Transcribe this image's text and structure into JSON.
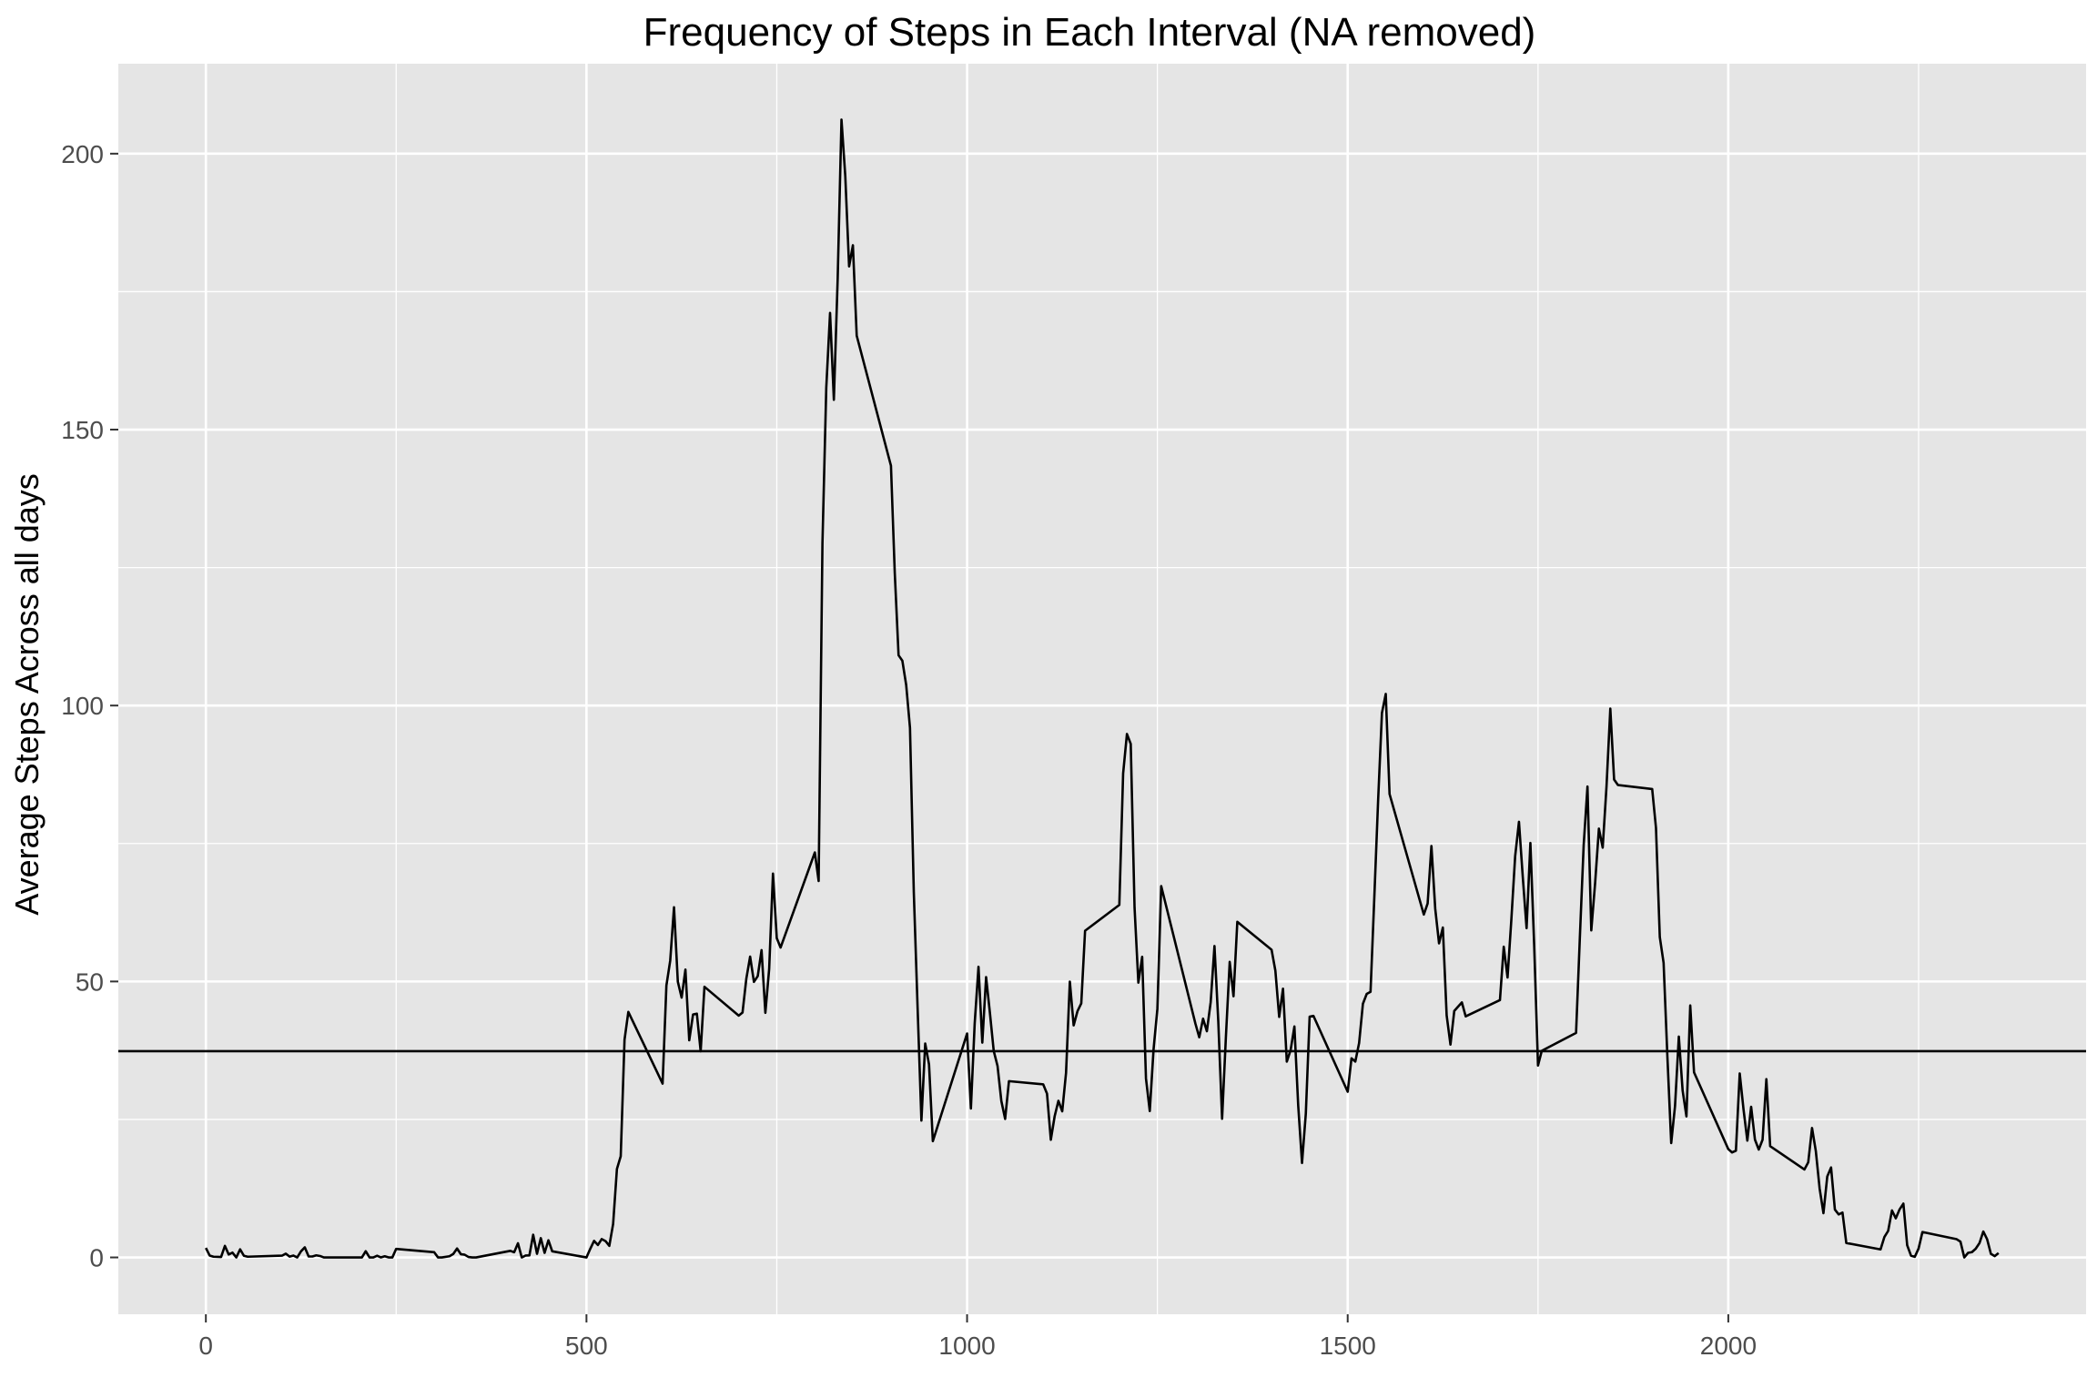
{
  "chart_data": {
    "type": "line",
    "title": "Frequency of Steps in Each Interval (NA removed)",
    "xlabel": "",
    "ylabel": "Average Steps Across all days",
    "xlim": [
      -115,
      2470
    ],
    "ylim": [
      -10.3,
      216.3
    ],
    "x_ticks": [
      0,
      500,
      1000,
      1500,
      2000
    ],
    "y_ticks": [
      0,
      50,
      100,
      150,
      200
    ],
    "x_tick_labels": [
      "0",
      "500",
      "1000",
      "1500",
      "2000"
    ],
    "y_tick_labels": [
      "0",
      "50",
      "100",
      "150",
      "200"
    ],
    "grid": true,
    "panel_color": "#e5e5e5",
    "grid_color": "#ffffff",
    "line_color": "#000000",
    "mean_line": 37.38,
    "series": [
      {
        "x": [
          0,
          5,
          10,
          20,
          25,
          30,
          35,
          40,
          45,
          50,
          55,
          100,
          105,
          110,
          115,
          120,
          125,
          130,
          135,
          140,
          145,
          150,
          155,
          200,
          205,
          210,
          215,
          220,
          225,
          230,
          235,
          240,
          245,
          250,
          300,
          305,
          310,
          320,
          325,
          330,
          335,
          340,
          345,
          350,
          355,
          400,
          405,
          410,
          415,
          420,
          425,
          430,
          435,
          440,
          445,
          450,
          455,
          500,
          505,
          510,
          515,
          520,
          525,
          530,
          535,
          540,
          545,
          550,
          555,
          600,
          605,
          610,
          615,
          620,
          625,
          630,
          635,
          640,
          645,
          650,
          655,
          700,
          705,
          710,
          715,
          720,
          725,
          730,
          735,
          740,
          745,
          750,
          755,
          800,
          805,
          810,
          815,
          820,
          825,
          830,
          835,
          840,
          845,
          850,
          855,
          900,
          905,
          910,
          915,
          920,
          925,
          930,
          935,
          940,
          945,
          950,
          955,
          1000,
          1005,
          1010,
          1015,
          1020,
          1025,
          1030,
          1035,
          1040,
          1045,
          1050,
          1055,
          1100,
          1105,
          1110,
          1115,
          1120,
          1125,
          1130,
          1135,
          1140,
          1145,
          1150,
          1155,
          1200,
          1205,
          1210,
          1215,
          1220,
          1225,
          1230,
          1235,
          1240,
          1245,
          1250,
          1255,
          1300,
          1305,
          1310,
          1315,
          1320,
          1325,
          1330,
          1335,
          1340,
          1345,
          1350,
          1355,
          1400,
          1405,
          1410,
          1415,
          1420,
          1425,
          1430,
          1435,
          1440,
          1445,
          1450,
          1455,
          1500,
          1505,
          1510,
          1515,
          1520,
          1525,
          1530,
          1535,
          1540,
          1545,
          1550,
          1555,
          1600,
          1605,
          1610,
          1615,
          1620,
          1625,
          1630,
          1635,
          1640,
          1645,
          1650,
          1655,
          1700,
          1705,
          1710,
          1715,
          1720,
          1725,
          1730,
          1735,
          1740,
          1745,
          1750,
          1755,
          1800,
          1805,
          1810,
          1815,
          1820,
          1825,
          1830,
          1835,
          1840,
          1845,
          1850,
          1855,
          1900,
          1905,
          1910,
          1915,
          1920,
          1925,
          1930,
          1935,
          1940,
          1945,
          1950,
          1955,
          2000,
          2005,
          2010,
          2015,
          2020,
          2025,
          2030,
          2035,
          2040,
          2045,
          2050,
          2055,
          2100,
          2105,
          2110,
          2115,
          2120,
          2125,
          2130,
          2135,
          2140,
          2145,
          2150,
          2155,
          2200,
          2205,
          2210,
          2215,
          2220,
          2225,
          2230,
          2235,
          2240,
          2245,
          2250,
          2255,
          2300,
          2305,
          2310,
          2315,
          2320,
          2325,
          2330,
          2335,
          2340,
          2345,
          2350,
          2355
        ],
        "y": [
          1.72,
          0.34,
          0.13,
          0.08,
          2.09,
          0.53,
          0.87,
          0,
          1.47,
          0.3,
          0.13,
          0.32,
          0.68,
          0.15,
          0.34,
          0,
          1.11,
          1.83,
          0.17,
          0.17,
          0.38,
          0.26,
          0,
          0,
          0,
          1.13,
          0,
          0,
          0.3,
          0,
          0.21,
          0,
          0,
          1.55,
          0.94,
          0,
          0,
          0.21,
          0.62,
          1.62,
          0.58,
          0.49,
          0.08,
          0,
          0,
          1.19,
          0.94,
          2.57,
          0,
          0.34,
          0.36,
          4.11,
          0.66,
          3.49,
          0.83,
          3.11,
          1.11,
          0,
          1.57,
          3,
          2.25,
          3.32,
          2.96,
          2.09,
          6.06,
          16.02,
          18.34,
          39.45,
          44.49,
          31.49,
          49.26,
          53.77,
          63.45,
          49.96,
          47.08,
          52.15,
          39.34,
          44.02,
          44.17,
          37.36,
          49.04,
          43.81,
          44.38,
          50.51,
          54.51,
          49.92,
          50.98,
          55.68,
          44.32,
          52.26,
          69.55,
          57.85,
          56.15,
          73.38,
          68.21,
          129.43,
          157.53,
          171.15,
          155.4,
          177.3,
          206.17,
          195.92,
          179.57,
          183.4,
          167.02,
          143.45,
          124.04,
          109.11,
          108.11,
          103.72,
          95.96,
          66.21,
          45.23,
          24.8,
          38.75,
          34.98,
          21.06,
          40.57,
          26.98,
          42.42,
          52.66,
          38.92,
          50.79,
          44.28,
          37.42,
          34.7,
          28.34,
          25.09,
          31.94,
          31.36,
          29.68,
          21.32,
          25.55,
          28.38,
          26.47,
          33.44,
          49.98,
          42.04,
          44.6,
          46.04,
          59.19,
          63.87,
          87.7,
          94.85,
          93.04,
          63.38,
          49.79,
          54.47,
          32.42,
          26.53,
          37.74,
          45.06,
          67.28,
          42.34,
          39.89,
          43.26,
          40.98,
          46.25,
          56.43,
          42.75,
          25.13,
          39.96,
          53.55,
          47.32,
          60.81,
          55.75,
          51.96,
          43.58,
          48.7,
          35.47,
          37.55,
          41.85,
          27.51,
          17.11,
          26.08,
          43.62,
          43.77,
          30.02,
          36.08,
          35.49,
          38.85,
          45.96,
          47.75,
          48.13,
          65.32,
          82.91,
          98.66,
          102.11,
          83.96,
          62.13,
          64.13,
          74.55,
          63.17,
          56.91,
          59.77,
          43.87,
          38.57,
          44.66,
          45.45,
          46.21,
          43.68,
          46.62,
          56.3,
          50.72,
          61.23,
          72.72,
          78.94,
          68.94,
          59.66,
          75.09,
          56.51,
          34.77,
          37.45,
          40.68,
          58.02,
          74.7,
          85.32,
          59.26,
          67.77,
          77.7,
          74.25,
          85.34,
          99.45,
          86.58,
          85.6,
          84.87,
          77.83,
          58.04,
          53.36,
          36.32,
          20.72,
          27.4,
          40.02,
          30.21,
          25.55,
          45.66,
          33.53,
          19.62,
          19.02,
          19.34,
          33.34,
          26.81,
          21.17,
          27.3,
          21.34,
          19.55,
          21.32,
          32.3,
          20.15,
          15.94,
          17.23,
          23.45,
          19.25,
          12.45,
          8.02,
          14.66,
          16.3,
          8.68,
          7.79,
          8.13,
          2.62,
          1.45,
          3.68,
          4.81,
          8.51,
          7.08,
          8.7,
          9.75,
          2.2,
          0.32,
          0.11,
          1.62,
          4.6,
          3.3,
          2.85,
          0,
          0.83,
          0.96,
          1.58,
          2.6,
          4.7,
          3.3,
          0.64,
          0.23,
          0.79
        ]
      }
    ]
  }
}
